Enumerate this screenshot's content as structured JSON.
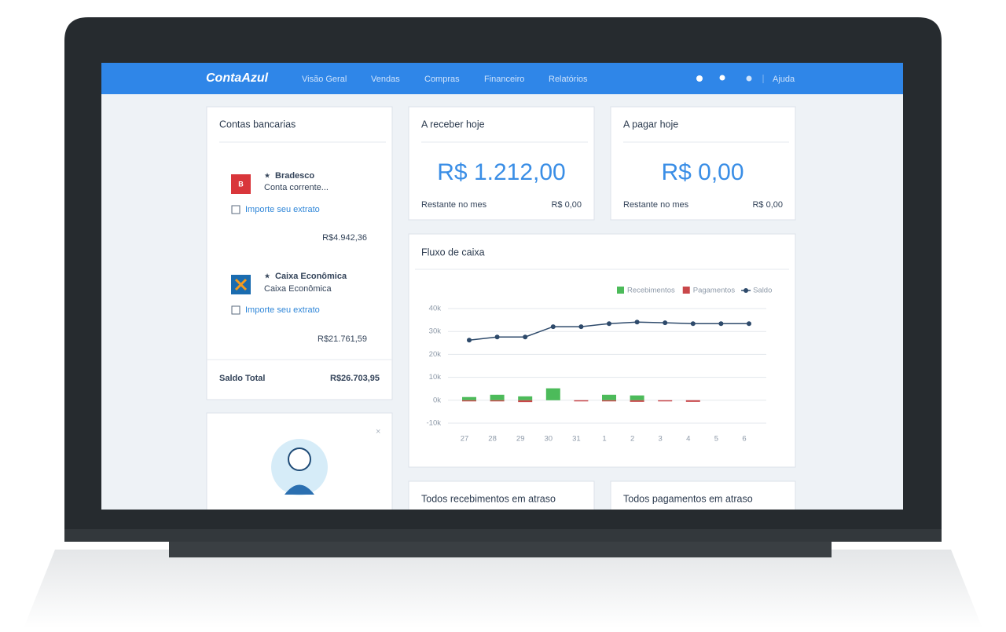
{
  "nav": {
    "brand": "ContaAzul",
    "items": [
      "Visão Geral",
      "Vendas",
      "Compras",
      "Financeiro",
      "Relatórios"
    ],
    "help": "Ajuda"
  },
  "accounts": {
    "title": "Contas bancarias",
    "banks": [
      {
        "badge": "B",
        "name": "Bradesco",
        "type": "Conta corrente...",
        "import": "Importe seu extrato",
        "balance": "R$4.942,36"
      },
      {
        "name": "Caixa Econômica",
        "type": "Caixa Econômica",
        "import": "Importe seu extrato",
        "balance": "R$21.761,59"
      }
    ],
    "total_label": "Saldo Total",
    "total": "R$26.703,95"
  },
  "receivable": {
    "title": "A receber hoje",
    "amount": "R$ 1.212,00",
    "remaining_label": "Restante no mes",
    "remaining": "R$ 0,00"
  },
  "payable": {
    "title": "A pagar hoje",
    "amount": "R$ 0,00",
    "remaining_label": "Restante no mes",
    "remaining": "R$ 0,00"
  },
  "chart_data": {
    "type": "bar-line",
    "title": "Fluxo de caixa",
    "categories": [
      "27",
      "28",
      "29",
      "30",
      "31",
      "1",
      "2",
      "3",
      "4",
      "5",
      "6"
    ],
    "series": [
      {
        "name": "Recebimentos",
        "color": "#4cbb5a",
        "type": "bar",
        "values": [
          1400,
          2400,
          1700,
          5200,
          0,
          2400,
          2100,
          0,
          0,
          0,
          0
        ]
      },
      {
        "name": "Pagamentos",
        "color": "#c9474a",
        "type": "bar",
        "values": [
          -500,
          -500,
          -800,
          0,
          -500,
          -500,
          -700,
          -500,
          -700,
          0,
          0
        ]
      },
      {
        "name": "Saldo",
        "color": "#2e4a6b",
        "type": "line",
        "values": [
          26200,
          27600,
          27600,
          32100,
          32100,
          33400,
          34100,
          33800,
          33400,
          33400,
          33400
        ]
      }
    ],
    "ylim": [
      -10000,
      40000
    ],
    "yticks": [
      {
        "value": -10000,
        "label": "-10k"
      },
      {
        "value": 0,
        "label": "0k"
      },
      {
        "value": 10000,
        "label": "10k"
      },
      {
        "value": 20000,
        "label": "20k"
      },
      {
        "value": 30000,
        "label": "30k"
      },
      {
        "value": 40000,
        "label": "40k"
      }
    ],
    "grid": true
  },
  "overdue_receipts": {
    "title": "Todos recebimentos em atraso"
  },
  "overdue_payments": {
    "title": "Todos pagamentos em atraso"
  }
}
